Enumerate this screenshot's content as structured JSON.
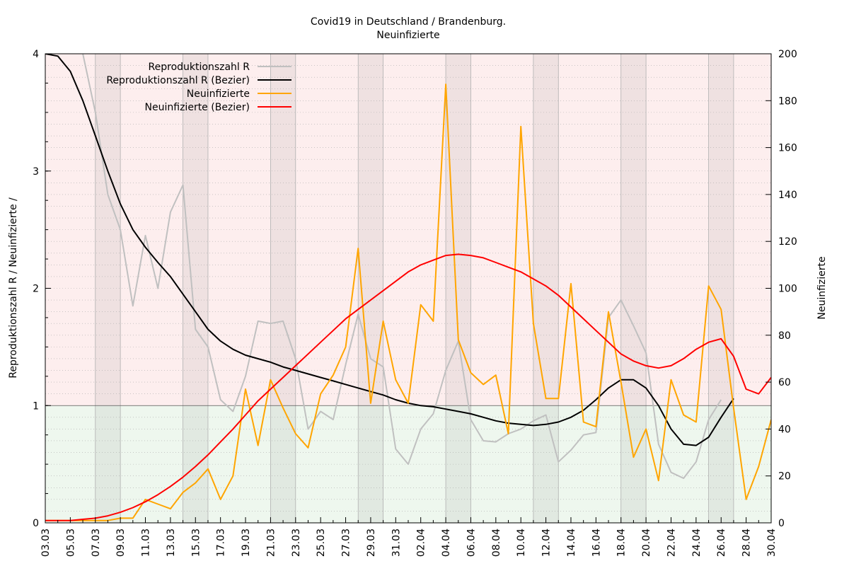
{
  "chart_data": {
    "type": "line",
    "title": "Covid19 in Deutschland / Brandenburg.",
    "subtitle": "Neuinfizierte",
    "ylabel_left": "Reproduktionszahl R / Neuinfizierte /",
    "ylabel_right": "Neuinfizierte",
    "x": [
      "03.03",
      "04.03",
      "05.03",
      "06.03",
      "07.03",
      "08.03",
      "09.03",
      "10.03",
      "11.03",
      "12.03",
      "13.03",
      "14.03",
      "15.03",
      "16.03",
      "17.03",
      "18.03",
      "19.03",
      "20.03",
      "21.03",
      "22.03",
      "23.03",
      "24.03",
      "25.03",
      "26.03",
      "27.03",
      "28.03",
      "29.03",
      "30.03",
      "31.03",
      "01.04",
      "02.04",
      "03.04",
      "04.04",
      "05.04",
      "06.04",
      "07.04",
      "08.04",
      "09.04",
      "10.04",
      "11.04",
      "12.04",
      "13.04",
      "14.04",
      "15.04",
      "16.04",
      "17.04",
      "18.04",
      "19.04",
      "20.04",
      "21.04",
      "22.04",
      "23.04",
      "24.04",
      "25.04",
      "26.04",
      "27.04",
      "28.04",
      "29.04",
      "30.04"
    ],
    "xticks": [
      "03.03",
      "05.03",
      "07.03",
      "09.03",
      "11.03",
      "13.03",
      "15.03",
      "17.03",
      "19.03",
      "21.03",
      "23.03",
      "25.03",
      "27.03",
      "29.03",
      "31.03",
      "02.04",
      "04.04",
      "06.04",
      "08.04",
      "10.04",
      "12.04",
      "14.04",
      "16.04",
      "18.04",
      "20.04",
      "22.04",
      "24.04",
      "26.04",
      "28.04",
      "30.04"
    ],
    "ylim_left": [
      0,
      4
    ],
    "yticks_left": [
      "0",
      "1",
      "2",
      "3",
      "4"
    ],
    "ylim_right": [
      0,
      200
    ],
    "yticks_right": [
      "0",
      "20",
      "40",
      "60",
      "80",
      "100",
      "120",
      "140",
      "160",
      "180",
      "200"
    ],
    "threshold": 1,
    "weekend_bands": [
      [
        4,
        6
      ],
      [
        11,
        13
      ],
      [
        18,
        20
      ],
      [
        25,
        27
      ],
      [
        32,
        34
      ],
      [
        39,
        41
      ],
      [
        46,
        48
      ],
      [
        53,
        55
      ]
    ],
    "grid": true,
    "legend_position": "top-center",
    "series": [
      {
        "name": "Reproduktionszahl R",
        "axis": "left",
        "color": "#c0c0c0",
        "values": [
          null,
          null,
          null,
          4.0,
          3.5,
          2.8,
          2.5,
          1.85,
          2.45,
          2.0,
          2.65,
          2.88,
          1.65,
          1.5,
          1.05,
          0.95,
          1.25,
          1.72,
          1.7,
          1.72,
          1.4,
          0.8,
          0.95,
          0.88,
          1.35,
          1.78,
          1.4,
          1.33,
          0.63,
          0.5,
          0.8,
          0.93,
          1.3,
          1.55,
          0.88,
          0.7,
          0.69,
          0.76,
          0.8,
          0.87,
          0.92,
          0.52,
          0.62,
          0.75,
          0.77,
          1.75,
          1.9,
          1.68,
          1.45,
          0.67,
          0.43,
          0.38,
          0.52,
          0.88,
          1.05,
          null,
          null,
          null,
          null
        ]
      },
      {
        "name": "Reproduktionszahl R (Bezier)",
        "axis": "left",
        "color": "#000000",
        "values": [
          4.0,
          3.98,
          3.85,
          3.6,
          3.3,
          3.0,
          2.72,
          2.5,
          2.35,
          2.22,
          2.1,
          1.95,
          1.8,
          1.65,
          1.55,
          1.48,
          1.43,
          1.4,
          1.37,
          1.33,
          1.3,
          1.27,
          1.24,
          1.21,
          1.18,
          1.15,
          1.12,
          1.09,
          1.05,
          1.02,
          1.0,
          0.99,
          0.97,
          0.95,
          0.93,
          0.9,
          0.87,
          0.85,
          0.84,
          0.83,
          0.84,
          0.86,
          0.9,
          0.96,
          1.05,
          1.15,
          1.22,
          1.22,
          1.15,
          1.0,
          0.8,
          0.67,
          0.66,
          0.73,
          0.9,
          1.06,
          null,
          null,
          null
        ]
      },
      {
        "name": "Neuinfizierte",
        "axis": "right",
        "color": "#ffa500",
        "values": [
          1,
          1,
          1,
          1,
          1,
          1,
          2,
          2,
          10,
          8,
          6,
          13,
          17,
          23,
          10,
          20,
          57,
          33,
          61,
          49,
          38,
          32,
          55,
          63,
          75,
          117,
          51,
          86,
          61,
          51,
          93,
          86,
          187,
          78,
          64,
          59,
          63,
          38,
          169,
          85,
          53,
          53,
          102,
          43,
          41,
          90,
          60,
          28,
          40,
          18,
          61,
          46,
          43,
          101,
          91,
          49,
          10,
          24,
          44
        ]
      },
      {
        "name": "Neuinfizierte (Bezier)",
        "axis": "right",
        "color": "#ff0000",
        "values": [
          1,
          1,
          1,
          1.5,
          2,
          3,
          4.5,
          6.5,
          9,
          12,
          15.5,
          19.5,
          24,
          29,
          34.5,
          40,
          46,
          52,
          57,
          62,
          67,
          72,
          77,
          82,
          87,
          91,
          95,
          99,
          103,
          107,
          110,
          112,
          114,
          114.5,
          114,
          113,
          111,
          109,
          107,
          104,
          101,
          97,
          92,
          87,
          82,
          77,
          72,
          69,
          67,
          66,
          67,
          70,
          74,
          77,
          78.5,
          71,
          57,
          55,
          62
        ]
      }
    ]
  }
}
